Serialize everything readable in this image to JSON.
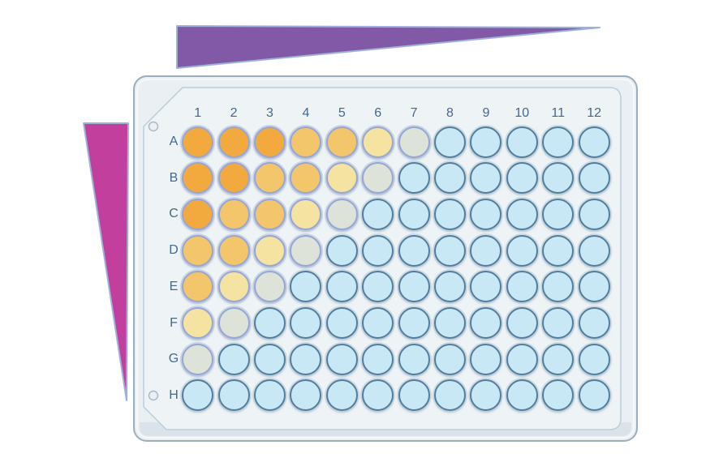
{
  "figure": {
    "description": "96-well microplate serial dilution diagram with two concentration-gradient wedge indicators"
  },
  "indicators": {
    "top": {
      "label": "horizontal-concentration-gradient",
      "direction": "high-left-to-low-right",
      "fill": "#8159A6",
      "stroke": "#9DB2DA"
    },
    "left": {
      "label": "vertical-concentration-gradient",
      "direction": "high-top-to-low-bottom",
      "fill": "#C33F9E",
      "stroke": "#9DB2DA"
    }
  },
  "plate": {
    "type": "96-well microplate",
    "column_labels": [
      "1",
      "2",
      "3",
      "4",
      "5",
      "6",
      "7",
      "8",
      "9",
      "10",
      "11",
      "12"
    ],
    "row_labels": [
      "A",
      "B",
      "C",
      "D",
      "E",
      "F",
      "G",
      "H"
    ],
    "label_color": "#44688C",
    "body_fill": "#E9EFF2",
    "body_stroke": "#9AAEBC",
    "body_highlight": "#F7FAFB",
    "body_depth_band": "#D3DFE5",
    "panel_fill": "#EEF3F5",
    "panel_stroke": "#BCCDD9",
    "hole_stroke": "#A9BAC7",
    "hole_fill": "#EAF0F3"
  },
  "wells": {
    "level_colors": {
      "0": "#C9E8F6",
      "1": "#DDE3D8",
      "2": "#F5E3A2",
      "3": "#F4C66B",
      "4": "#F2A93D"
    },
    "ring_filled": "#97A6D3",
    "ring_empty": "#537E9B",
    "grid": [
      [
        4,
        4,
        4,
        3,
        3,
        2,
        1,
        0,
        0,
        0,
        0,
        0
      ],
      [
        4,
        4,
        3,
        3,
        2,
        1,
        0,
        0,
        0,
        0,
        0,
        0
      ],
      [
        4,
        3,
        3,
        2,
        1,
        0,
        0,
        0,
        0,
        0,
        0,
        0
      ],
      [
        3,
        3,
        2,
        1,
        0,
        0,
        0,
        0,
        0,
        0,
        0,
        0
      ],
      [
        3,
        2,
        1,
        0,
        0,
        0,
        0,
        0,
        0,
        0,
        0,
        0
      ],
      [
        2,
        1,
        0,
        0,
        0,
        0,
        0,
        0,
        0,
        0,
        0,
        0
      ],
      [
        1,
        0,
        0,
        0,
        0,
        0,
        0,
        0,
        0,
        0,
        0,
        0
      ],
      [
        0,
        0,
        0,
        0,
        0,
        0,
        0,
        0,
        0,
        0,
        0,
        0
      ]
    ]
  }
}
